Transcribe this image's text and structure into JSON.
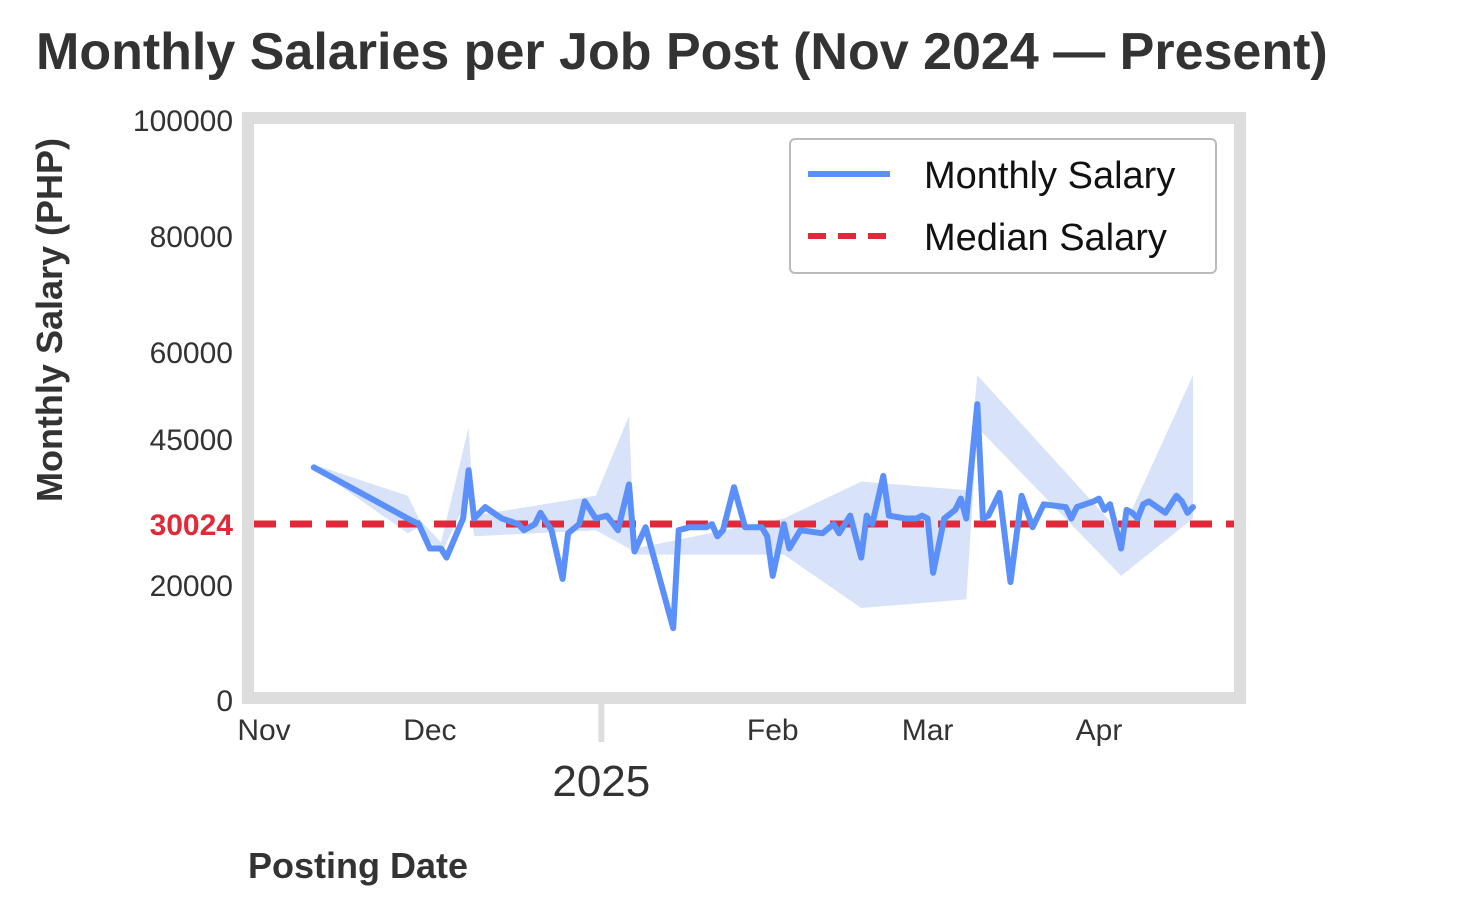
{
  "chart_data": {
    "type": "line",
    "title": "Monthly Salaries per Job Post (Nov 2024 — Present)",
    "xlabel": "Posting Date",
    "ylabel": "Monthly Salary (PHP)",
    "x_year_label": "2025",
    "x_ticks": [
      {
        "date": "2024-11-01",
        "label": "Nov"
      },
      {
        "date": "2024-12-01",
        "label": "Dec"
      },
      {
        "date": "2025-02-01",
        "label": "Feb"
      },
      {
        "date": "2025-03-01",
        "label": "Mar"
      },
      {
        "date": "2025-04-01",
        "label": "Apr"
      }
    ],
    "x_year_tick": "2025-01-01",
    "x_range": [
      "2024-10-31",
      "2025-04-18"
    ],
    "y_ticks": [
      0,
      20000,
      30024,
      45000,
      60000,
      80000,
      100000
    ],
    "ylim": [
      0,
      100000
    ],
    "median_value": 30024,
    "median_label": "30024",
    "grid": false,
    "legend_position": "top-right",
    "colors": {
      "line": "#5b8ff9",
      "band": "#c7d7f7",
      "median": "#e02a3a",
      "frame": "#dddddd"
    },
    "series": [
      {
        "name": "Monthly Salary",
        "style": "solid",
        "points": [
          [
            "2024-11-10",
            40000
          ],
          [
            "2024-11-27",
            31000
          ],
          [
            "2024-11-29",
            30000
          ],
          [
            "2024-12-01",
            26000
          ],
          [
            "2024-12-03",
            26000
          ],
          [
            "2024-12-04",
            24500
          ],
          [
            "2024-12-07",
            31000
          ],
          [
            "2024-12-08",
            39500
          ],
          [
            "2024-12-09",
            31000
          ],
          [
            "2024-12-11",
            33000
          ],
          [
            "2024-12-14",
            31000
          ],
          [
            "2024-12-17",
            30000
          ],
          [
            "2024-12-18",
            29000
          ],
          [
            "2024-12-20",
            30000
          ],
          [
            "2024-12-21",
            32000
          ],
          [
            "2024-12-23",
            29000
          ],
          [
            "2024-12-25",
            21000
          ],
          [
            "2024-12-26",
            28500
          ],
          [
            "2024-12-28",
            30000
          ],
          [
            "2024-12-29",
            34000
          ],
          [
            "2024-12-31",
            31000
          ],
          [
            "2025-01-02",
            31500
          ],
          [
            "2025-01-04",
            29000
          ],
          [
            "2025-01-06",
            37000
          ],
          [
            "2025-01-07",
            25500
          ],
          [
            "2025-01-09",
            29500
          ],
          [
            "2025-01-14",
            12500
          ],
          [
            "2025-01-15",
            29000
          ],
          [
            "2025-01-17",
            29500
          ],
          [
            "2025-01-20",
            29500
          ],
          [
            "2025-01-21",
            30000
          ],
          [
            "2025-01-22",
            28000
          ],
          [
            "2025-01-23",
            29000
          ],
          [
            "2025-01-25",
            36500
          ],
          [
            "2025-01-27",
            29500
          ],
          [
            "2025-01-30",
            29500
          ],
          [
            "2025-01-31",
            28000
          ],
          [
            "2025-02-01",
            21500
          ],
          [
            "2025-02-03",
            30000
          ],
          [
            "2025-02-04",
            26000
          ],
          [
            "2025-02-06",
            29000
          ],
          [
            "2025-02-10",
            28500
          ],
          [
            "2025-02-12",
            30000
          ],
          [
            "2025-02-13",
            28500
          ],
          [
            "2025-02-15",
            31500
          ],
          [
            "2025-02-17",
            24500
          ],
          [
            "2025-02-18",
            31500
          ],
          [
            "2025-02-19",
            30000
          ],
          [
            "2025-02-21",
            38500
          ],
          [
            "2025-02-22",
            31500
          ],
          [
            "2025-02-25",
            31000
          ],
          [
            "2025-02-27",
            31000
          ],
          [
            "2025-02-28",
            31500
          ],
          [
            "2025-03-01",
            31000
          ],
          [
            "2025-03-02",
            22000
          ],
          [
            "2025-03-04",
            31000
          ],
          [
            "2025-03-06",
            32500
          ],
          [
            "2025-03-07",
            34500
          ],
          [
            "2025-03-08",
            31000
          ],
          [
            "2025-03-10",
            51000
          ],
          [
            "2025-03-11",
            31000
          ],
          [
            "2025-03-12",
            31500
          ],
          [
            "2025-03-14",
            35500
          ],
          [
            "2025-03-16",
            20500
          ],
          [
            "2025-03-18",
            35000
          ],
          [
            "2025-03-20",
            29500
          ],
          [
            "2025-03-22",
            33500
          ],
          [
            "2025-03-26",
            33000
          ],
          [
            "2025-03-27",
            31000
          ],
          [
            "2025-03-28",
            33000
          ],
          [
            "2025-03-31",
            34000
          ],
          [
            "2025-04-01",
            34500
          ],
          [
            "2025-04-02",
            32500
          ],
          [
            "2025-04-03",
            33500
          ],
          [
            "2025-04-05",
            26000
          ],
          [
            "2025-04-06",
            32500
          ],
          [
            "2025-04-07",
            32000
          ],
          [
            "2025-04-08",
            31000
          ],
          [
            "2025-04-09",
            33500
          ],
          [
            "2025-04-10",
            34000
          ],
          [
            "2025-04-13",
            32000
          ],
          [
            "2025-04-15",
            35000
          ],
          [
            "2025-04-16",
            34000
          ],
          [
            "2025-04-17",
            32000
          ],
          [
            "2025-04-18",
            33000
          ]
        ]
      },
      {
        "name": "Median Salary",
        "style": "dashed",
        "value": 30024
      }
    ],
    "confidence_band": [
      [
        "2024-11-10",
        40000,
        40500
      ],
      [
        "2024-11-27",
        28500,
        35000
      ],
      [
        "2024-11-29",
        29500,
        31000
      ],
      [
        "2024-12-03",
        25000,
        27000
      ],
      [
        "2024-12-08",
        35000,
        47000
      ],
      [
        "2024-12-09",
        28000,
        31500
      ],
      [
        "2024-12-31",
        29000,
        35000
      ],
      [
        "2025-01-06",
        26000,
        49000
      ],
      [
        "2025-01-07",
        25000,
        26000
      ],
      [
        "2025-02-03",
        25000,
        31000
      ],
      [
        "2025-02-17",
        16000,
        37500
      ],
      [
        "2025-03-08",
        17500,
        36000
      ],
      [
        "2025-03-10",
        47000,
        56000
      ],
      [
        "2025-04-05",
        21500,
        28500
      ],
      [
        "2025-04-18",
        31000,
        56000
      ]
    ]
  }
}
